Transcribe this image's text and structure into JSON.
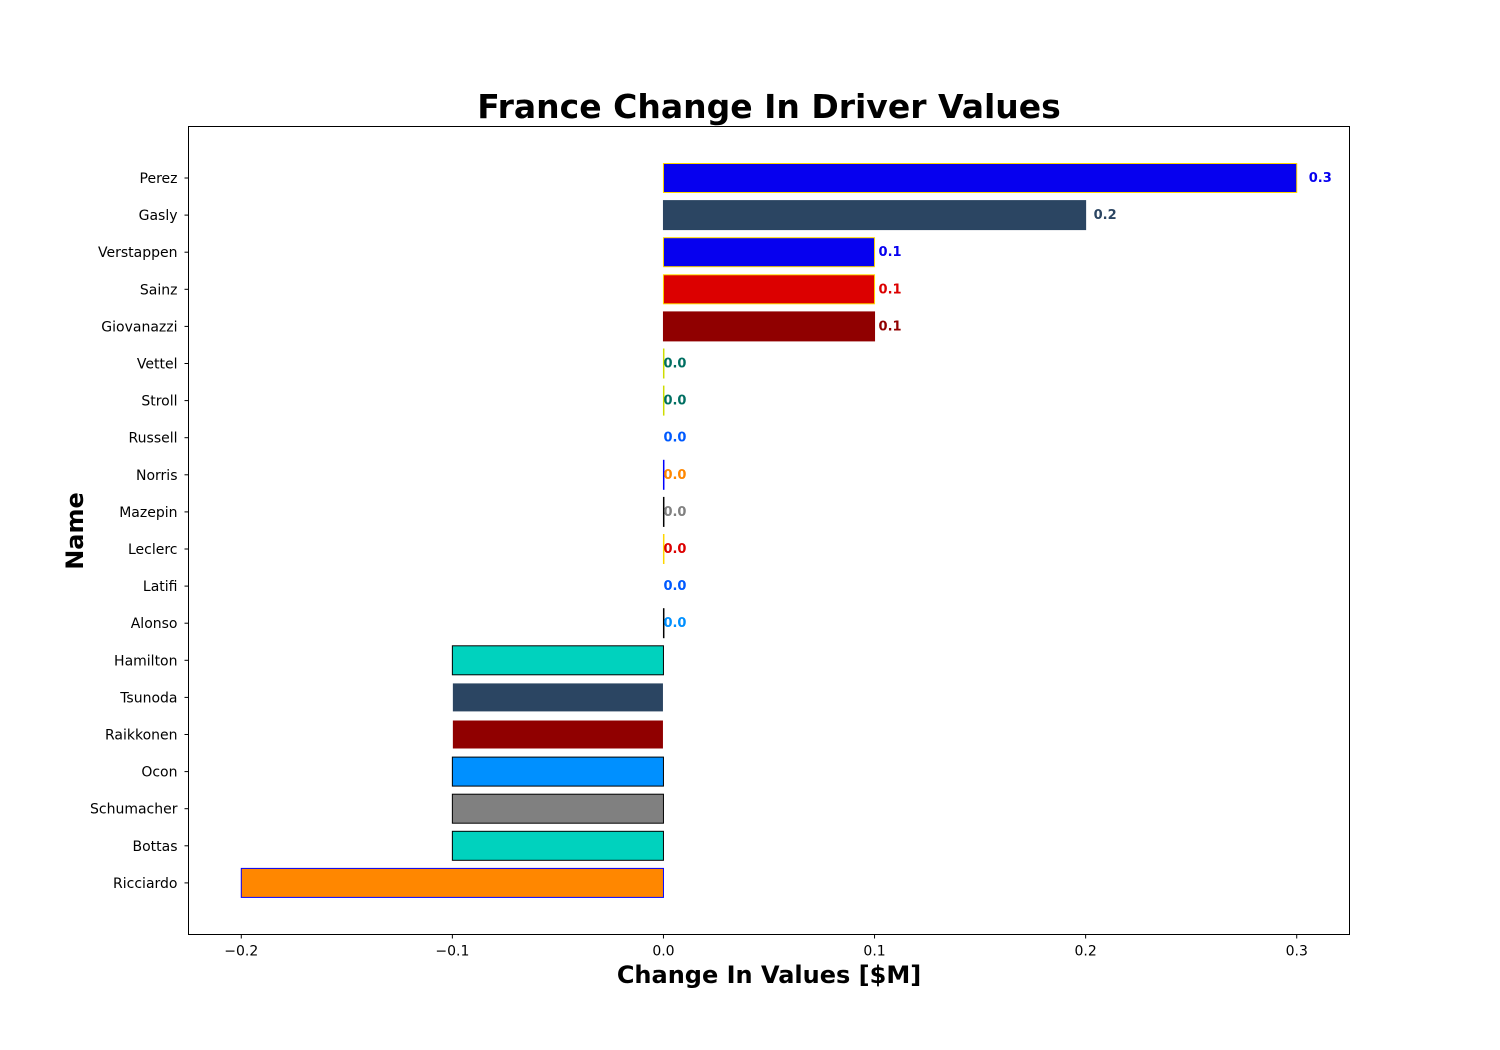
{
  "chart_data": {
    "type": "bar",
    "orientation": "horizontal",
    "title": "France Change In Driver Values",
    "xlabel": "Change In Values [$M]",
    "ylabel": "Name",
    "xlim": [
      -0.225,
      0.325
    ],
    "xticks": [
      -0.2,
      -0.1,
      0.0,
      0.1,
      0.2,
      0.3
    ],
    "xtick_labels": [
      "−0.2",
      "−0.1",
      "0.0",
      "0.1",
      "0.2",
      "0.3"
    ],
    "grid": false,
    "legend": "none",
    "bars": [
      {
        "name": "Perez",
        "value": 0.3,
        "label": "0.3",
        "fill": "#0600EF",
        "edge": "#FFD700",
        "label_color": "#0600EF"
      },
      {
        "name": "Gasly",
        "value": 0.2,
        "label": "0.2",
        "fill": "#2B4562",
        "edge": "#2B4562",
        "label_color": "#2B4562"
      },
      {
        "name": "Verstappen",
        "value": 0.1,
        "label": "0.1",
        "fill": "#0600EF",
        "edge": "#FFD700",
        "label_color": "#0600EF"
      },
      {
        "name": "Sainz",
        "value": 0.1,
        "label": "0.1",
        "fill": "#DC0000",
        "edge": "#FFD700",
        "label_color": "#DC0000"
      },
      {
        "name": "Giovanazzi",
        "value": 0.1,
        "label": "0.1",
        "fill": "#900000",
        "edge": "#900000",
        "label_color": "#900000"
      },
      {
        "name": "Vettel",
        "value": 0.0,
        "label": "0.0",
        "fill": "#006F62",
        "edge": "#CEDC00",
        "label_color": "#006F62"
      },
      {
        "name": "Stroll",
        "value": 0.0,
        "label": "0.0",
        "fill": "#006F62",
        "edge": "#CEDC00",
        "label_color": "#006F62"
      },
      {
        "name": "Russell",
        "value": 0.0,
        "label": "0.0",
        "fill": "#005AFF",
        "edge": "#FFFFFF",
        "label_color": "#005AFF"
      },
      {
        "name": "Norris",
        "value": 0.0,
        "label": "0.0",
        "fill": "#FF8700",
        "edge": "#0000FF",
        "label_color": "#FF8700"
      },
      {
        "name": "Mazepin",
        "value": 0.0,
        "label": "0.0",
        "fill": "#808080",
        "edge": "#000000",
        "label_color": "#808080"
      },
      {
        "name": "Leclerc",
        "value": 0.0,
        "label": "0.0",
        "fill": "#DC0000",
        "edge": "#FFD700",
        "label_color": "#DC0000"
      },
      {
        "name": "Latifi",
        "value": 0.0,
        "label": "0.0",
        "fill": "#005AFF",
        "edge": "#FFFFFF",
        "label_color": "#005AFF"
      },
      {
        "name": "Alonso",
        "value": 0.0,
        "label": "0.0",
        "fill": "#0090FF",
        "edge": "#000000",
        "label_color": "#0090FF"
      },
      {
        "name": "Hamilton",
        "value": -0.1,
        "fill": "#00D2BE",
        "edge": "#000000"
      },
      {
        "name": "Tsunoda",
        "value": -0.1,
        "fill": "#2B4562",
        "edge": "#FFFFFF"
      },
      {
        "name": "Raikkonen",
        "value": -0.1,
        "fill": "#900000",
        "edge": "#FFFFFF"
      },
      {
        "name": "Ocon",
        "value": -0.1,
        "fill": "#0090FF",
        "edge": "#000000"
      },
      {
        "name": "Schumacher",
        "value": -0.1,
        "fill": "#808080",
        "edge": "#000000"
      },
      {
        "name": "Bottas",
        "value": -0.1,
        "fill": "#00D2BE",
        "edge": "#000000"
      },
      {
        "name": "Ricciardo",
        "value": -0.2,
        "fill": "#FF8700",
        "edge": "#0000FF"
      }
    ]
  }
}
